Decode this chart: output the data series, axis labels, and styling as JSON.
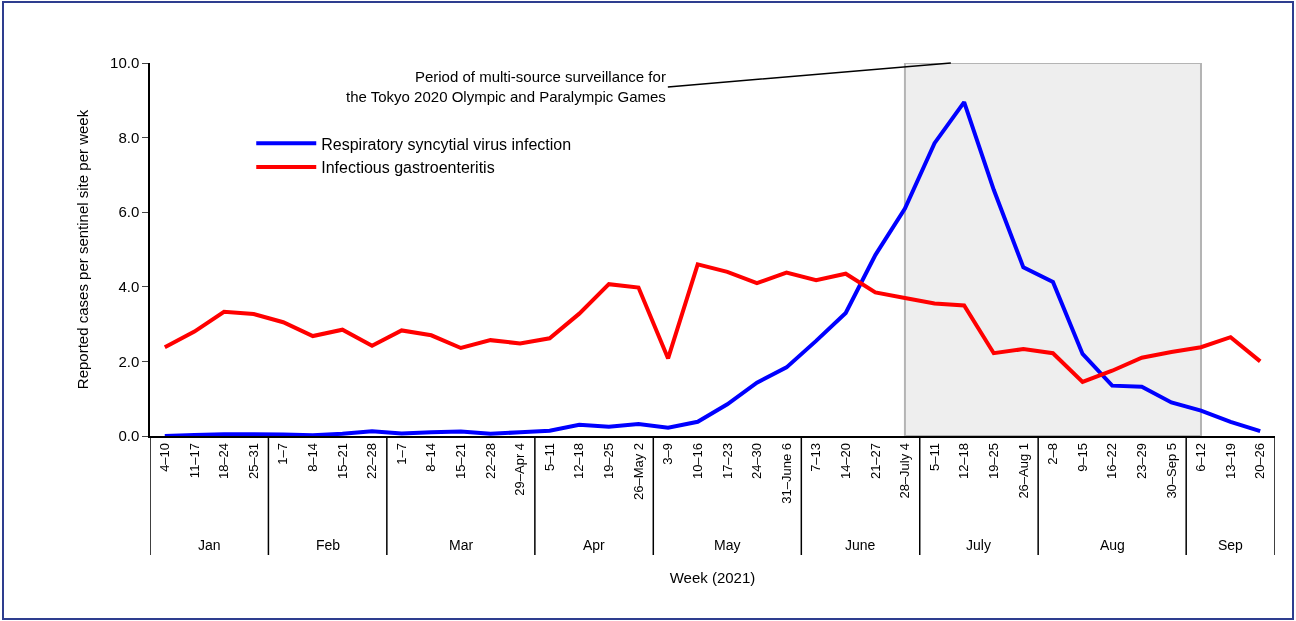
{
  "chart_data": {
    "type": "line",
    "xlabel": "Week (2021)",
    "ylabel": "Reported cases per sentinel site per week",
    "categories": [
      "4–10",
      "11–17",
      "18–24",
      "25–31",
      "1–7",
      "8–14",
      "15–21",
      "22–28",
      "1–7",
      "8–14",
      "15–21",
      "22–28",
      "29–Apr 4",
      "5–11",
      "12–18",
      "19–25",
      "26–May 2",
      "3–9",
      "10–16",
      "17–23",
      "24–30",
      "31–June 6",
      "7–13",
      "14–20",
      "21–27",
      "28–July 4",
      "5–11",
      "12–18",
      "19–25",
      "26–Aug 1",
      "2–8",
      "9–15",
      "16–22",
      "23–29",
      "30–Sep 5",
      "6–12",
      "13–19",
      "20–26"
    ],
    "series": [
      {
        "name": "Respiratory syncytial virus infection",
        "color": "#0000ff",
        "values": [
          0.0,
          0.03,
          0.05,
          0.05,
          0.04,
          0.02,
          0.06,
          0.13,
          0.07,
          0.1,
          0.12,
          0.06,
          0.1,
          0.14,
          0.3,
          0.25,
          0.32,
          0.22,
          0.38,
          0.85,
          1.43,
          1.84,
          2.55,
          3.3,
          4.85,
          6.1,
          7.85,
          8.95,
          6.6,
          4.52,
          4.13,
          2.2,
          1.35,
          1.32,
          0.9,
          0.68,
          0.38,
          0.13
        ]
      },
      {
        "name": "Infectious gastroenteritis",
        "color": "#ff0000",
        "values": [
          2.38,
          2.8,
          3.33,
          3.27,
          3.05,
          2.68,
          2.85,
          2.42,
          2.83,
          2.7,
          2.36,
          2.57,
          2.48,
          2.62,
          3.28,
          4.07,
          3.98,
          2.08,
          4.6,
          4.4,
          4.1,
          4.38,
          4.18,
          4.35,
          3.85,
          3.7,
          3.55,
          3.5,
          2.22,
          2.33,
          2.22,
          1.45,
          1.75,
          2.1,
          2.25,
          2.38,
          2.65,
          2.0
        ]
      }
    ],
    "ylim": [
      0,
      10
    ],
    "yticks": [
      {
        "value": 0,
        "label": "0.0"
      },
      {
        "value": 2,
        "label": "2.0"
      },
      {
        "value": 4,
        "label": "4.0"
      },
      {
        "value": 6,
        "label": "6.0"
      },
      {
        "value": 8,
        "label": "8.0"
      },
      {
        "value": 10,
        "label": "10.0"
      }
    ],
    "bands": [
      {
        "axis": "x",
        "from": "28–July 4",
        "to": "6–12",
        "label": "Period of multi-source surveillance for the Tokyo 2020 Olympic and Paralympic Games",
        "color": "#eeeeee"
      }
    ],
    "annotations": [
      "Jan",
      "Feb",
      "Mar",
      "Apr",
      "May",
      "June",
      "July",
      "Aug",
      "Sep"
    ],
    "grid": false,
    "legend": "top left",
    "marker": "none",
    "line_style": "solid"
  }
}
